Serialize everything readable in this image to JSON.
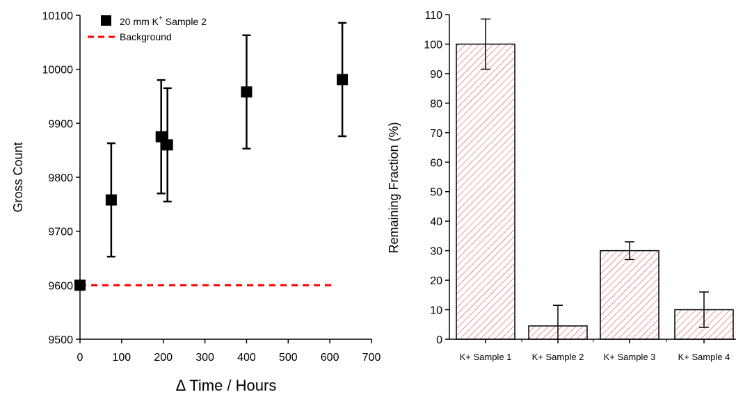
{
  "chart_data": [
    {
      "type": "scatter",
      "xlabel": "Δ Time / Hours",
      "ylabel": "Gross Count",
      "xlim": [
        0,
        700
      ],
      "ylim": [
        9500,
        10100
      ],
      "xticks": [
        0,
        100,
        200,
        300,
        400,
        500,
        600,
        700
      ],
      "yticks": [
        9500,
        9600,
        9700,
        9800,
        9900,
        10000,
        10100
      ],
      "legend_position": "top-left",
      "series": [
        {
          "name": "20 mm K⁺ Sample 2",
          "legend_main": "20 mm K",
          "legend_sup": "+",
          "legend_tail": " Sample 2",
          "color": "#000000",
          "marker": "square",
          "points": [
            {
              "x": 0,
              "y": 9600,
              "err": 0
            },
            {
              "x": 75,
              "y": 9758,
              "err": 105
            },
            {
              "x": 195,
              "y": 9875,
              "err": 105
            },
            {
              "x": 210,
              "y": 9860,
              "err": 105
            },
            {
              "x": 400,
              "y": 9958,
              "err": 105
            },
            {
              "x": 630,
              "y": 9981,
              "err": 105
            }
          ]
        },
        {
          "name": "Background",
          "type": "line",
          "style": "dashed",
          "color": "#ff0000",
          "x": [
            0,
            610
          ],
          "y": [
            9600,
            9600
          ]
        }
      ]
    },
    {
      "type": "bar",
      "xlabel": "",
      "ylabel": "Remaining Fraction (%)",
      "ylim": [
        0,
        110
      ],
      "yticks": [
        0,
        10,
        20,
        30,
        40,
        50,
        60,
        70,
        80,
        90,
        100,
        110
      ],
      "categories": [
        "K+ Sample 1",
        "K+ Sample 2",
        "K+ Sample 3",
        "K+ Sample 4"
      ],
      "values": [
        100,
        4.5,
        30,
        10
      ],
      "errors": [
        8.5,
        7,
        3,
        6
      ],
      "bar_fill": "hatched",
      "bar_color": "#ff0000"
    }
  ]
}
